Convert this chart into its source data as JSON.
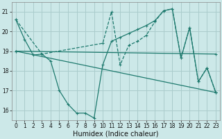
{
  "xlabel": "Humidex (Indice chaleur)",
  "bg_color": "#cce8e8",
  "grid_color": "#aacccc",
  "line_color": "#1e7a6e",
  "xlim": [
    -0.5,
    23.5
  ],
  "ylim": [
    15.5,
    21.5
  ],
  "xticks": [
    0,
    1,
    2,
    3,
    4,
    5,
    6,
    7,
    8,
    9,
    10,
    11,
    12,
    13,
    14,
    15,
    16,
    17,
    18,
    19,
    20,
    21,
    22,
    23
  ],
  "yticks": [
    16,
    17,
    18,
    19,
    20,
    21
  ],
  "series": [
    {
      "x": [
        0,
        1,
        2,
        3,
        4,
        5,
        6,
        7,
        8,
        9,
        10,
        11,
        12,
        13,
        14,
        15,
        16,
        17,
        18,
        19,
        20,
        21,
        22,
        23
      ],
      "y": [
        20.6,
        19.6,
        18.8,
        18.85,
        18.5,
        17.0,
        16.3,
        15.85,
        15.85,
        15.6,
        18.3,
        19.5,
        19.7,
        19.9,
        20.1,
        20.3,
        20.55,
        21.05,
        21.15,
        18.65,
        20.2,
        17.45,
        18.15,
        16.9
      ],
      "linestyle": "-"
    },
    {
      "x": [
        0,
        3,
        10,
        11,
        12,
        13,
        14,
        15,
        16,
        17,
        18,
        19,
        20,
        21,
        22,
        23
      ],
      "y": [
        20.6,
        18.85,
        19.4,
        21.0,
        18.3,
        19.3,
        19.5,
        19.8,
        20.5,
        21.05,
        21.15,
        18.65,
        20.2,
        17.45,
        18.15,
        16.9
      ],
      "linestyle": "--"
    },
    {
      "x": [
        0,
        23
      ],
      "y": [
        19.0,
        18.85
      ],
      "linestyle": "-"
    },
    {
      "x": [
        0,
        23
      ],
      "y": [
        19.0,
        16.9
      ],
      "linestyle": "-"
    }
  ]
}
